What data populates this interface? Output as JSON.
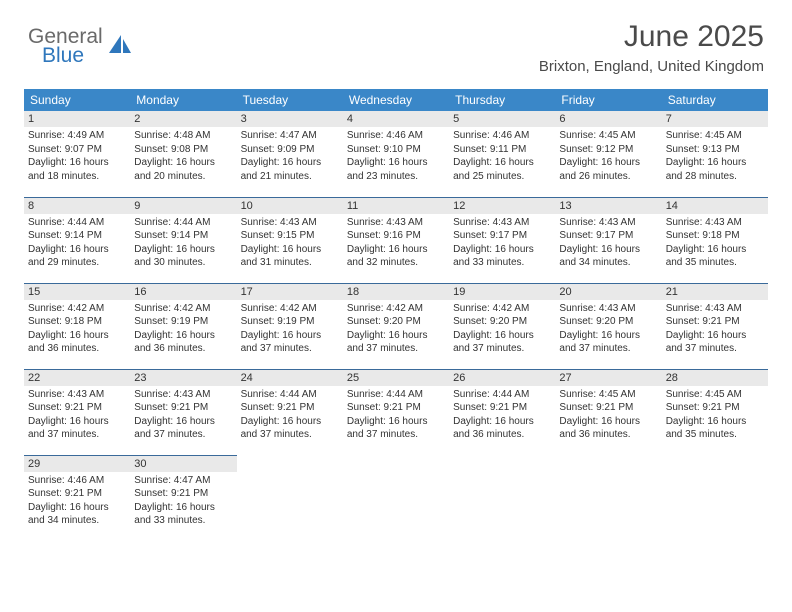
{
  "logo": {
    "general": "General",
    "blue": "Blue"
  },
  "header": {
    "month_title": "June 2025",
    "location": "Brixton, England, United Kingdom"
  },
  "colors": {
    "header_bg": "#3a87c8",
    "header_text": "#ffffff",
    "daynum_bg": "#e9e9e9",
    "border": "#3a6a9a",
    "logo_gray": "#6a6a6a",
    "logo_blue": "#2f77bc"
  },
  "weekdays": [
    "Sunday",
    "Monday",
    "Tuesday",
    "Wednesday",
    "Thursday",
    "Friday",
    "Saturday"
  ],
  "days": [
    {
      "n": "1",
      "sr": "4:49 AM",
      "ss": "9:07 PM",
      "dl": "16 hours and 18 minutes."
    },
    {
      "n": "2",
      "sr": "4:48 AM",
      "ss": "9:08 PM",
      "dl": "16 hours and 20 minutes."
    },
    {
      "n": "3",
      "sr": "4:47 AM",
      "ss": "9:09 PM",
      "dl": "16 hours and 21 minutes."
    },
    {
      "n": "4",
      "sr": "4:46 AM",
      "ss": "9:10 PM",
      "dl": "16 hours and 23 minutes."
    },
    {
      "n": "5",
      "sr": "4:46 AM",
      "ss": "9:11 PM",
      "dl": "16 hours and 25 minutes."
    },
    {
      "n": "6",
      "sr": "4:45 AM",
      "ss": "9:12 PM",
      "dl": "16 hours and 26 minutes."
    },
    {
      "n": "7",
      "sr": "4:45 AM",
      "ss": "9:13 PM",
      "dl": "16 hours and 28 minutes."
    },
    {
      "n": "8",
      "sr": "4:44 AM",
      "ss": "9:14 PM",
      "dl": "16 hours and 29 minutes."
    },
    {
      "n": "9",
      "sr": "4:44 AM",
      "ss": "9:14 PM",
      "dl": "16 hours and 30 minutes."
    },
    {
      "n": "10",
      "sr": "4:43 AM",
      "ss": "9:15 PM",
      "dl": "16 hours and 31 minutes."
    },
    {
      "n": "11",
      "sr": "4:43 AM",
      "ss": "9:16 PM",
      "dl": "16 hours and 32 minutes."
    },
    {
      "n": "12",
      "sr": "4:43 AM",
      "ss": "9:17 PM",
      "dl": "16 hours and 33 minutes."
    },
    {
      "n": "13",
      "sr": "4:43 AM",
      "ss": "9:17 PM",
      "dl": "16 hours and 34 minutes."
    },
    {
      "n": "14",
      "sr": "4:43 AM",
      "ss": "9:18 PM",
      "dl": "16 hours and 35 minutes."
    },
    {
      "n": "15",
      "sr": "4:42 AM",
      "ss": "9:18 PM",
      "dl": "16 hours and 36 minutes."
    },
    {
      "n": "16",
      "sr": "4:42 AM",
      "ss": "9:19 PM",
      "dl": "16 hours and 36 minutes."
    },
    {
      "n": "17",
      "sr": "4:42 AM",
      "ss": "9:19 PM",
      "dl": "16 hours and 37 minutes."
    },
    {
      "n": "18",
      "sr": "4:42 AM",
      "ss": "9:20 PM",
      "dl": "16 hours and 37 minutes."
    },
    {
      "n": "19",
      "sr": "4:42 AM",
      "ss": "9:20 PM",
      "dl": "16 hours and 37 minutes."
    },
    {
      "n": "20",
      "sr": "4:43 AM",
      "ss": "9:20 PM",
      "dl": "16 hours and 37 minutes."
    },
    {
      "n": "21",
      "sr": "4:43 AM",
      "ss": "9:21 PM",
      "dl": "16 hours and 37 minutes."
    },
    {
      "n": "22",
      "sr": "4:43 AM",
      "ss": "9:21 PM",
      "dl": "16 hours and 37 minutes."
    },
    {
      "n": "23",
      "sr": "4:43 AM",
      "ss": "9:21 PM",
      "dl": "16 hours and 37 minutes."
    },
    {
      "n": "24",
      "sr": "4:44 AM",
      "ss": "9:21 PM",
      "dl": "16 hours and 37 minutes."
    },
    {
      "n": "25",
      "sr": "4:44 AM",
      "ss": "9:21 PM",
      "dl": "16 hours and 37 minutes."
    },
    {
      "n": "26",
      "sr": "4:44 AM",
      "ss": "9:21 PM",
      "dl": "16 hours and 36 minutes."
    },
    {
      "n": "27",
      "sr": "4:45 AM",
      "ss": "9:21 PM",
      "dl": "16 hours and 36 minutes."
    },
    {
      "n": "28",
      "sr": "4:45 AM",
      "ss": "9:21 PM",
      "dl": "16 hours and 35 minutes."
    },
    {
      "n": "29",
      "sr": "4:46 AM",
      "ss": "9:21 PM",
      "dl": "16 hours and 34 minutes."
    },
    {
      "n": "30",
      "sr": "4:47 AM",
      "ss": "9:21 PM",
      "dl": "16 hours and 33 minutes."
    }
  ],
  "labels": {
    "sunrise": "Sunrise:",
    "sunset": "Sunset:",
    "daylight": "Daylight:"
  }
}
